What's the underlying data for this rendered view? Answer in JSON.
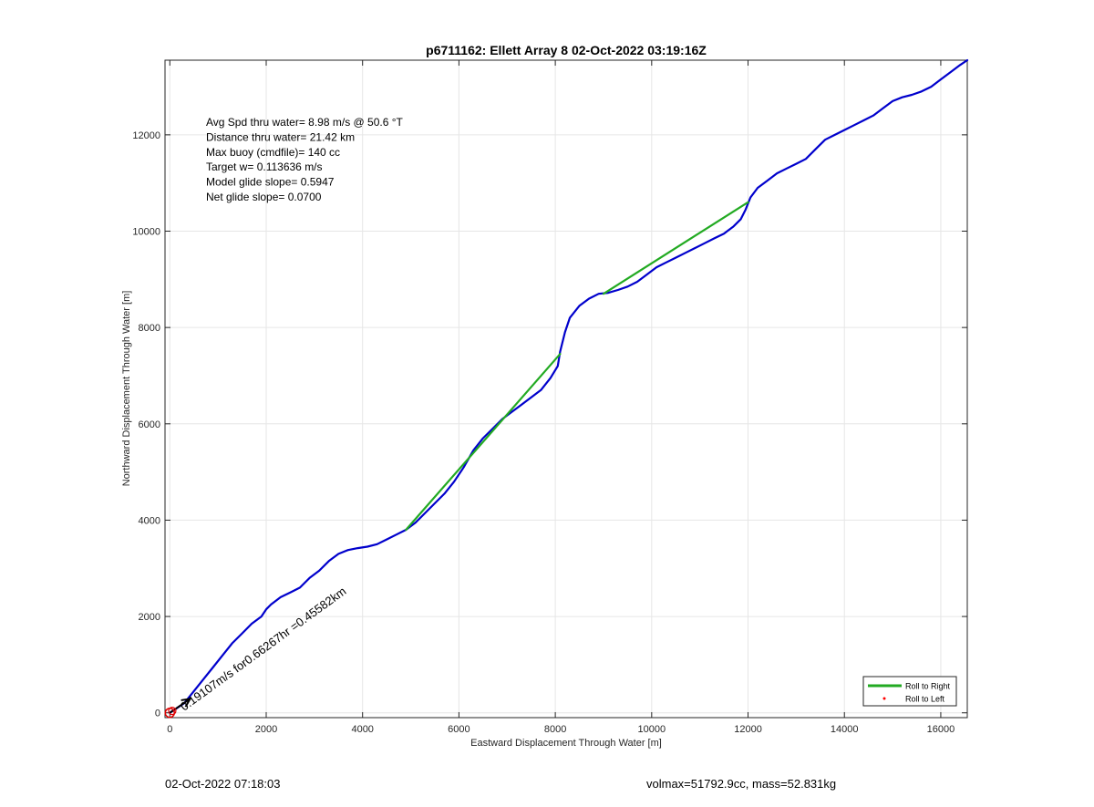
{
  "chart_data": {
    "type": "line",
    "title": "p6711162: Ellett Array 8 02-Oct-2022 03:19:16Z",
    "xlabel": "Eastward Displacement Through Water [m]",
    "ylabel": "Northward Displacement Through Water [m]",
    "xlim": [
      -100,
      16550
    ],
    "ylim": [
      -100,
      13550
    ],
    "xticks": [
      0,
      2000,
      4000,
      6000,
      8000,
      10000,
      12000,
      14000,
      16000
    ],
    "yticks": [
      0,
      2000,
      4000,
      6000,
      8000,
      10000,
      12000
    ],
    "grid": true,
    "legend_position": "bottom-right",
    "legend": [
      {
        "label": "Roll to Right",
        "color": "#22aa22",
        "style": "line"
      },
      {
        "label": "Roll to Left",
        "color": "#ff0000",
        "style": "dot"
      }
    ],
    "stats": [
      "Avg Spd thru water=  8.98 m/s @  50.6 °T",
      "Distance thru water= 21.42 km",
      "Max buoy (cmdfile)= 140 cc",
      "Target w= 0.113636 m/s",
      "Model glide slope= 0.5947",
      "Net glide slope= 0.0700"
    ],
    "current_annotation": "0.19107m/s for0.66267hr =0.45582km",
    "series": [
      {
        "color": "#0000cc",
        "points": [
          [
            0,
            0
          ],
          [
            150,
            100
          ],
          [
            300,
            200
          ],
          [
            500,
            450
          ],
          [
            700,
            700
          ],
          [
            900,
            950
          ],
          [
            1100,
            1200
          ],
          [
            1300,
            1450
          ],
          [
            1500,
            1650
          ],
          [
            1700,
            1850
          ],
          [
            1900,
            2000
          ],
          [
            2000,
            2150
          ],
          [
            2100,
            2250
          ],
          [
            2300,
            2400
          ],
          [
            2500,
            2500
          ],
          [
            2700,
            2600
          ],
          [
            2900,
            2800
          ],
          [
            3100,
            2950
          ],
          [
            3300,
            3150
          ],
          [
            3500,
            3300
          ],
          [
            3700,
            3380
          ],
          [
            3900,
            3420
          ],
          [
            4100,
            3450
          ],
          [
            4300,
            3500
          ],
          [
            4500,
            3600
          ],
          [
            4700,
            3700
          ],
          [
            4900,
            3800
          ],
          [
            5100,
            3950
          ],
          [
            5300,
            4150
          ],
          [
            5500,
            4350
          ],
          [
            5700,
            4550
          ],
          [
            5900,
            4800
          ],
          [
            6100,
            5100
          ],
          [
            6300,
            5450
          ],
          [
            6500,
            5700
          ],
          [
            6700,
            5900
          ],
          [
            6900,
            6100
          ],
          [
            7100,
            6250
          ],
          [
            7300,
            6400
          ],
          [
            7500,
            6550
          ],
          [
            7700,
            6700
          ],
          [
            7900,
            6950
          ],
          [
            8050,
            7200
          ],
          [
            8100,
            7500
          ],
          [
            8200,
            7900
          ],
          [
            8300,
            8200
          ],
          [
            8500,
            8450
          ],
          [
            8700,
            8600
          ],
          [
            8900,
            8700
          ],
          [
            9100,
            8720
          ],
          [
            9300,
            8780
          ],
          [
            9500,
            8850
          ],
          [
            9700,
            8950
          ],
          [
            9900,
            9100
          ],
          [
            10100,
            9250
          ],
          [
            10300,
            9350
          ],
          [
            10500,
            9450
          ],
          [
            10700,
            9550
          ],
          [
            10900,
            9650
          ],
          [
            11100,
            9750
          ],
          [
            11300,
            9850
          ],
          [
            11500,
            9950
          ],
          [
            11700,
            10100
          ],
          [
            11850,
            10250
          ],
          [
            11950,
            10450
          ],
          [
            12050,
            10700
          ],
          [
            12200,
            10900
          ],
          [
            12400,
            11050
          ],
          [
            12600,
            11200
          ],
          [
            12800,
            11300
          ],
          [
            13000,
            11400
          ],
          [
            13200,
            11500
          ],
          [
            13400,
            11700
          ],
          [
            13600,
            11900
          ],
          [
            13800,
            12000
          ],
          [
            14000,
            12100
          ],
          [
            14200,
            12200
          ],
          [
            14400,
            12300
          ],
          [
            14600,
            12400
          ],
          [
            14800,
            12550
          ],
          [
            15000,
            12700
          ],
          [
            15200,
            12780
          ],
          [
            15400,
            12830
          ],
          [
            15600,
            12900
          ],
          [
            15800,
            13000
          ],
          [
            16000,
            13150
          ],
          [
            16200,
            13300
          ],
          [
            16400,
            13450
          ],
          [
            16550,
            13550
          ]
        ]
      },
      {
        "color": "#22aa22",
        "points": [
          [
            4900,
            3800
          ],
          [
            8100,
            7450
          ]
        ]
      },
      {
        "color": "#22aa22",
        "points": [
          [
            9000,
            8700
          ],
          [
            12000,
            10600
          ]
        ]
      }
    ]
  },
  "footer": {
    "date": "02-Oct-2022 07:18:03",
    "volmass": "volmax=51792.9cc, mass=52.831kg"
  }
}
